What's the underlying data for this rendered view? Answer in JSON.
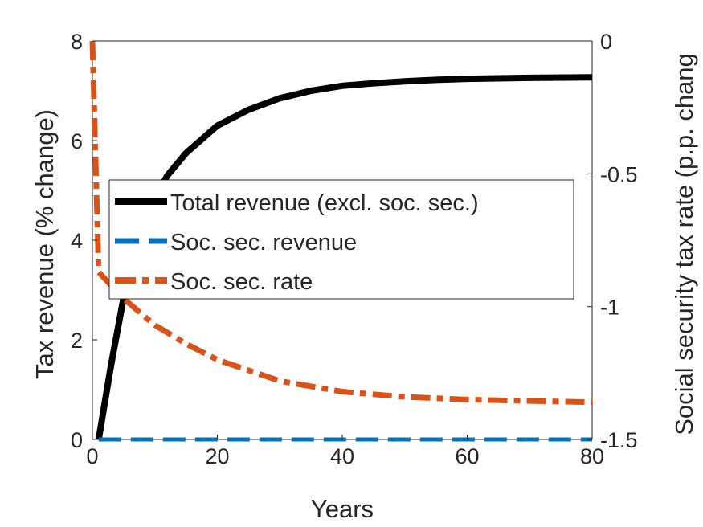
{
  "chart_data": {
    "type": "line",
    "xlabel": "Years",
    "ylabel_left": "Tax revenue (% change)",
    "ylabel_right": "Social security tax rate (p.p. chang",
    "xlim": [
      0,
      80
    ],
    "ylim_left": [
      0,
      8
    ],
    "ylim_right": [
      -1.5,
      0
    ],
    "x_ticks": [
      "0",
      "20",
      "40",
      "60",
      "80"
    ],
    "y_left_ticks": [
      "0",
      "2",
      "4",
      "6",
      "8"
    ],
    "y_right_ticks": [
      "-1.5",
      "-1",
      "-0.5",
      "0"
    ],
    "grid": false,
    "legend_position": "center-left",
    "series": [
      {
        "name": "Total revenue (excl. soc. sec.)",
        "axis": "left",
        "color": "#000000",
        "style": "solid",
        "points": [
          [
            1,
            0
          ],
          [
            3,
            1.5
          ],
          [
            5,
            2.85
          ],
          [
            8,
            4.15
          ],
          [
            10,
            4.85
          ],
          [
            12,
            5.3
          ],
          [
            15,
            5.75
          ],
          [
            20,
            6.3
          ],
          [
            25,
            6.62
          ],
          [
            30,
            6.85
          ],
          [
            35,
            7.0
          ],
          [
            40,
            7.1
          ],
          [
            45,
            7.15
          ],
          [
            50,
            7.19
          ],
          [
            55,
            7.22
          ],
          [
            60,
            7.24
          ],
          [
            70,
            7.26
          ],
          [
            80,
            7.27
          ]
        ]
      },
      {
        "name": "Soc. sec. revenue",
        "axis": "left",
        "color": "#0072BD",
        "style": "dashed",
        "points": [
          [
            1,
            0
          ],
          [
            80,
            0
          ]
        ]
      },
      {
        "name": "Soc. sec. rate",
        "axis": "right",
        "color": "#D95319",
        "style": "dashdot",
        "points": [
          [
            0,
            0
          ],
          [
            1,
            -0.87
          ],
          [
            3,
            -0.92
          ],
          [
            5,
            -0.97
          ],
          [
            8,
            -1.03
          ],
          [
            10,
            -1.07
          ],
          [
            15,
            -1.14
          ],
          [
            20,
            -1.2
          ],
          [
            25,
            -1.24
          ],
          [
            30,
            -1.28
          ],
          [
            35,
            -1.3
          ],
          [
            40,
            -1.32
          ],
          [
            45,
            -1.33
          ],
          [
            50,
            -1.34
          ],
          [
            55,
            -1.345
          ],
          [
            60,
            -1.35
          ],
          [
            70,
            -1.355
          ],
          [
            80,
            -1.36
          ]
        ]
      }
    ]
  }
}
